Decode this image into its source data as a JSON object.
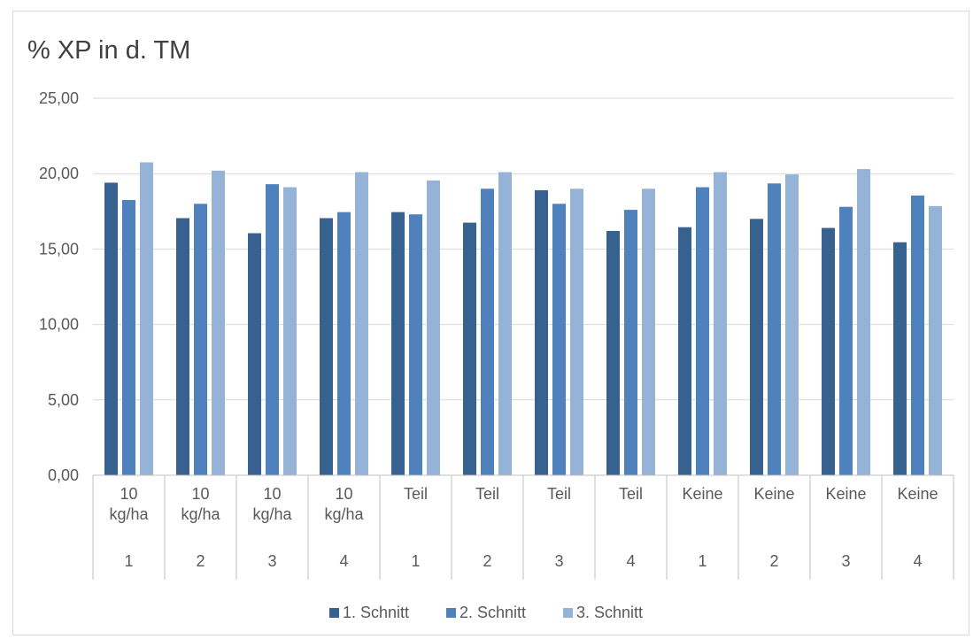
{
  "chart_data": {
    "type": "bar",
    "title": "% XP in d. TM",
    "xlabel": "",
    "ylabel": "",
    "ylim": [
      0,
      25
    ],
    "yticks": [
      "0,00",
      "5,00",
      "10,00",
      "15,00",
      "20,00",
      "25,00"
    ],
    "grid": true,
    "legend_position": "bottom",
    "categories": [
      {
        "top": [
          "10",
          "kg/ha"
        ],
        "bottom": "1"
      },
      {
        "top": [
          "10",
          "kg/ha"
        ],
        "bottom": "2"
      },
      {
        "top": [
          "10",
          "kg/ha"
        ],
        "bottom": "3"
      },
      {
        "top": [
          "10",
          "kg/ha"
        ],
        "bottom": "4"
      },
      {
        "top": [
          "Teil"
        ],
        "bottom": "1"
      },
      {
        "top": [
          "Teil"
        ],
        "bottom": "2"
      },
      {
        "top": [
          "Teil"
        ],
        "bottom": "3"
      },
      {
        "top": [
          "Teil"
        ],
        "bottom": "4"
      },
      {
        "top": [
          "Keine"
        ],
        "bottom": "1"
      },
      {
        "top": [
          "Keine"
        ],
        "bottom": "2"
      },
      {
        "top": [
          "Keine"
        ],
        "bottom": "3"
      },
      {
        "top": [
          "Keine"
        ],
        "bottom": "4"
      }
    ],
    "series": [
      {
        "name": "1. Schnitt",
        "color": "#37618f",
        "values": [
          19.4,
          17.05,
          16.05,
          17.05,
          17.45,
          16.75,
          18.9,
          16.2,
          16.45,
          17.0,
          16.4,
          15.45
        ]
      },
      {
        "name": "2. Schnitt",
        "color": "#4f81bd",
        "values": [
          18.25,
          18.0,
          19.3,
          17.45,
          17.3,
          19.0,
          18.0,
          17.6,
          19.1,
          19.35,
          17.8,
          18.55
        ]
      },
      {
        "name": "3. Schnitt",
        "color": "#95b3d7",
        "values": [
          20.75,
          20.2,
          19.1,
          20.1,
          19.55,
          20.1,
          19.0,
          19.0,
          20.1,
          19.95,
          20.3,
          17.85
        ]
      }
    ]
  }
}
